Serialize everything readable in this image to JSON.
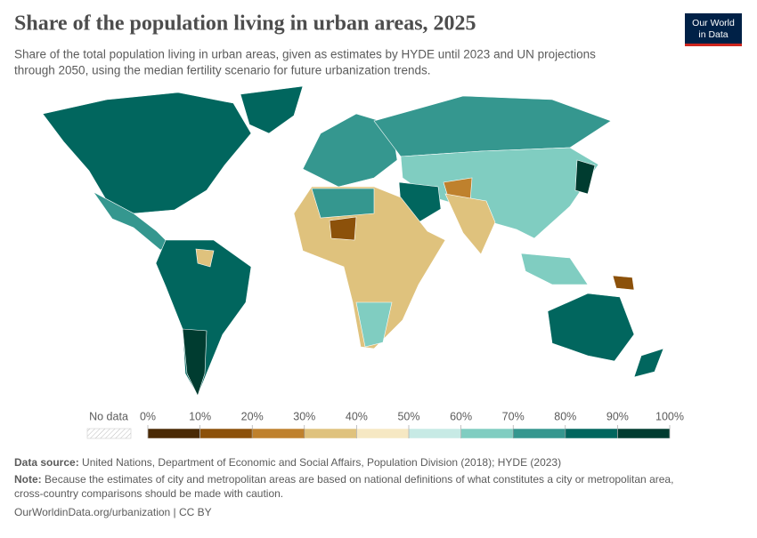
{
  "header": {
    "title": "Share of the population living in urban areas, 2025",
    "subtitle_lines": [
      "Share of the total population living in urban areas, given as estimates by HYDE until 2023 and UN projections",
      "through 2050, using the median fertility scenario for future urbanization trends."
    ],
    "logo_lines": [
      "Our World",
      "in Data"
    ]
  },
  "legend": {
    "no_data": "No data",
    "ticks": [
      {
        "value": 0,
        "label": "0%"
      },
      {
        "value": 10,
        "label": "10%"
      },
      {
        "value": 20,
        "label": "20%"
      },
      {
        "value": 30,
        "label": "30%"
      },
      {
        "value": 40,
        "label": "40%"
      },
      {
        "value": 50,
        "label": "50%"
      },
      {
        "value": 60,
        "label": "60%"
      },
      {
        "value": 70,
        "label": "70%"
      },
      {
        "value": 80,
        "label": "80%"
      },
      {
        "value": 90,
        "label": "90%"
      },
      {
        "value": 100,
        "label": "100%"
      }
    ],
    "colors": [
      "#4a2a05",
      "#8c510a",
      "#bf812d",
      "#dfc27d",
      "#f6e8c3",
      "#c7eae5",
      "#80cdc1",
      "#35978f",
      "#01665e",
      "#003c30"
    ]
  },
  "footer": {
    "source_label": "Data source:",
    "source": "United Nations, Department of Economic and Social Affairs, Population Division (2018); HYDE (2023)",
    "note_label": "Note:",
    "note_lines": [
      "Because the estimates of city and metropolitan areas are based on national definitions of what constitutes a city or metropolitan area,",
      "cross-country comparisons should be made with caution."
    ],
    "url": "OurWorldinData.org/urbanization | CC BY"
  }
}
